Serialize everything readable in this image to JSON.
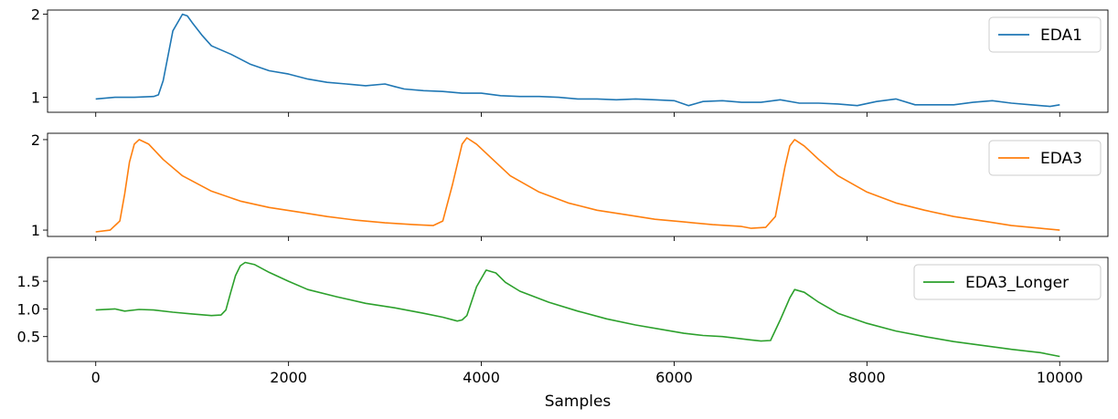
{
  "chart_data": [
    {
      "type": "line",
      "xlabel": "",
      "xlim": [
        -500,
        10500
      ],
      "ylim": [
        0.82,
        2.05
      ],
      "yticks": [
        1,
        2
      ],
      "ytick_labels": [
        "1",
        "2"
      ],
      "xticks": [
        0,
        2000,
        4000,
        6000,
        8000,
        10000
      ],
      "xtick_labels": [],
      "legend_position": "upper right",
      "series": [
        {
          "name": "EDA1",
          "color": "#1f77b4",
          "x": [
            0,
            200,
            400,
            600,
            650,
            700,
            800,
            900,
            950,
            1000,
            1100,
            1200,
            1400,
            1600,
            1800,
            2000,
            2200,
            2400,
            2600,
            2800,
            3000,
            3100,
            3200,
            3400,
            3600,
            3800,
            4000,
            4200,
            4400,
            4600,
            4800,
            5000,
            5200,
            5400,
            5600,
            5800,
            6000,
            6150,
            6300,
            6500,
            6700,
            6900,
            7100,
            7300,
            7500,
            7700,
            7900,
            8100,
            8300,
            8500,
            8700,
            8900,
            9100,
            9300,
            9500,
            9700,
            9900,
            10000
          ],
          "y": [
            0.98,
            1.0,
            1.0,
            1.01,
            1.03,
            1.2,
            1.8,
            2.0,
            1.98,
            1.9,
            1.75,
            1.62,
            1.52,
            1.4,
            1.32,
            1.28,
            1.22,
            1.18,
            1.16,
            1.14,
            1.16,
            1.13,
            1.1,
            1.08,
            1.07,
            1.05,
            1.05,
            1.02,
            1.01,
            1.01,
            1.0,
            0.98,
            0.98,
            0.97,
            0.98,
            0.97,
            0.96,
            0.9,
            0.95,
            0.96,
            0.94,
            0.94,
            0.97,
            0.93,
            0.93,
            0.92,
            0.9,
            0.95,
            0.98,
            0.91,
            0.91,
            0.91,
            0.94,
            0.96,
            0.93,
            0.91,
            0.89,
            0.91
          ]
        }
      ]
    },
    {
      "type": "line",
      "xlabel": "",
      "xlim": [
        -500,
        10500
      ],
      "ylim": [
        0.93,
        2.07
      ],
      "yticks": [
        1,
        2
      ],
      "ytick_labels": [
        "1",
        "2"
      ],
      "xticks": [
        0,
        2000,
        4000,
        6000,
        8000,
        10000
      ],
      "xtick_labels": [],
      "legend_position": "upper right",
      "series": [
        {
          "name": "EDA3",
          "color": "#ff7f0e",
          "x": [
            0,
            150,
            250,
            300,
            350,
            400,
            450,
            550,
            700,
            900,
            1200,
            1500,
            1800,
            2100,
            2400,
            2700,
            3000,
            3300,
            3500,
            3600,
            3700,
            3800,
            3850,
            3950,
            4100,
            4300,
            4600,
            4900,
            5200,
            5500,
            5800,
            6100,
            6400,
            6700,
            6800,
            6950,
            7050,
            7150,
            7200,
            7250,
            7350,
            7500,
            7700,
            8000,
            8300,
            8600,
            8900,
            9200,
            9500,
            9800,
            10000
          ],
          "y": [
            0.98,
            1.0,
            1.1,
            1.4,
            1.75,
            1.95,
            2.0,
            1.95,
            1.78,
            1.6,
            1.43,
            1.32,
            1.25,
            1.2,
            1.15,
            1.11,
            1.08,
            1.06,
            1.05,
            1.1,
            1.5,
            1.95,
            2.02,
            1.95,
            1.8,
            1.6,
            1.42,
            1.3,
            1.22,
            1.17,
            1.12,
            1.09,
            1.06,
            1.04,
            1.02,
            1.03,
            1.15,
            1.7,
            1.93,
            2.0,
            1.93,
            1.78,
            1.6,
            1.42,
            1.3,
            1.22,
            1.15,
            1.1,
            1.05,
            1.02,
            1.0
          ]
        }
      ]
    },
    {
      "type": "line",
      "xlabel": "Samples",
      "xlim": [
        -500,
        10500
      ],
      "ylim": [
        0.05,
        1.93
      ],
      "yticks": [
        0.5,
        1.0,
        1.5
      ],
      "ytick_labels": [
        "0.5",
        "1.0",
        "1.5"
      ],
      "xticks": [
        0,
        2000,
        4000,
        6000,
        8000,
        10000
      ],
      "xtick_labels": [
        "0",
        "2000",
        "4000",
        "6000",
        "8000",
        "10000"
      ],
      "legend_position": "upper right",
      "series": [
        {
          "name": "EDA3_Longer",
          "color": "#2ca02c",
          "x": [
            0,
            200,
            300,
            450,
            600,
            800,
            1000,
            1200,
            1300,
            1350,
            1400,
            1450,
            1500,
            1550,
            1650,
            1800,
            2000,
            2200,
            2500,
            2800,
            3100,
            3400,
            3600,
            3750,
            3800,
            3850,
            3950,
            4050,
            4150,
            4250,
            4400,
            4700,
            5000,
            5300,
            5600,
            5900,
            6100,
            6300,
            6500,
            6800,
            6900,
            7000,
            7100,
            7200,
            7250,
            7350,
            7500,
            7700,
            8000,
            8300,
            8600,
            8900,
            9200,
            9500,
            9800,
            10000
          ],
          "y": [
            0.98,
            1.0,
            0.96,
            0.99,
            0.98,
            0.94,
            0.91,
            0.88,
            0.89,
            0.98,
            1.3,
            1.6,
            1.78,
            1.84,
            1.8,
            1.66,
            1.5,
            1.35,
            1.22,
            1.1,
            1.02,
            0.92,
            0.85,
            0.78,
            0.8,
            0.88,
            1.4,
            1.7,
            1.65,
            1.48,
            1.32,
            1.12,
            0.96,
            0.82,
            0.71,
            0.62,
            0.56,
            0.52,
            0.5,
            0.44,
            0.42,
            0.43,
            0.8,
            1.2,
            1.35,
            1.3,
            1.12,
            0.92,
            0.74,
            0.6,
            0.5,
            0.41,
            0.34,
            0.27,
            0.21,
            0.14
          ]
        }
      ]
    }
  ]
}
